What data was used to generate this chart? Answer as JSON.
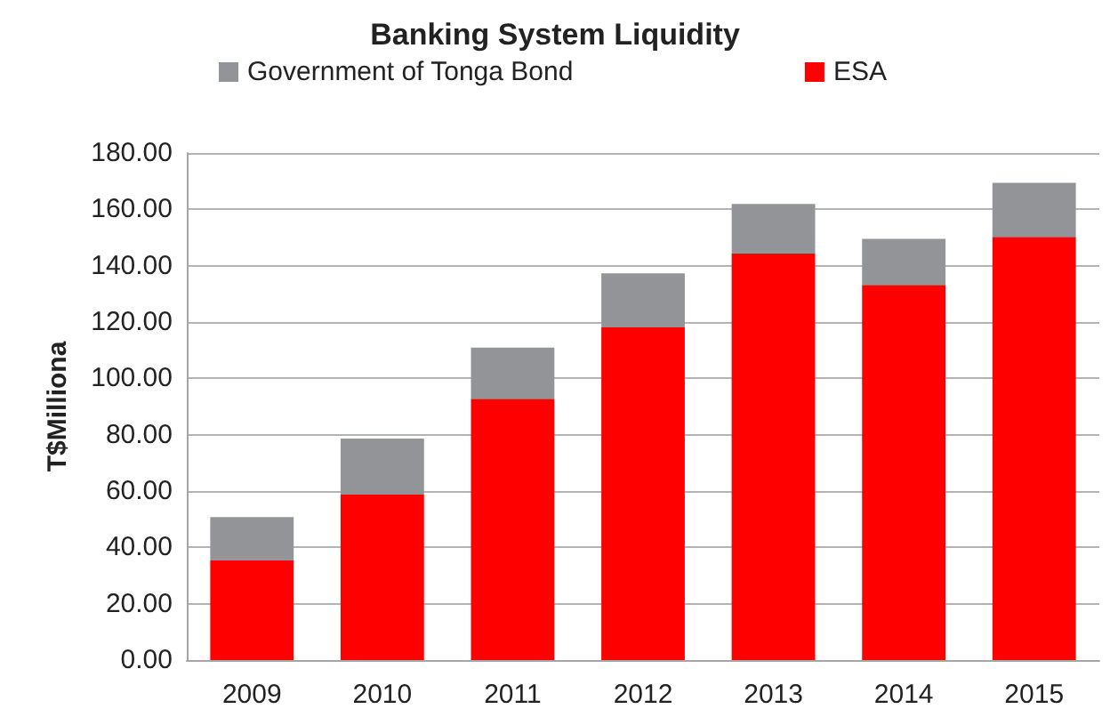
{
  "chart_data": {
    "type": "bar",
    "title": "Banking System Liquidity",
    "ylabel": "T$Milliona",
    "categories": [
      "2009",
      "2010",
      "2011",
      "2012",
      "2013",
      "2014",
      "2015"
    ],
    "stacked": true,
    "series": [
      {
        "name": "ESA",
        "color": "#ff0000",
        "values": [
          35.5,
          58.7,
          92.8,
          118.1,
          144.5,
          133.2,
          150.2
        ]
      },
      {
        "name": "Government of Tonga Bond",
        "color": "#929497",
        "values": [
          15.3,
          19.9,
          18.1,
          19.2,
          17.4,
          16.3,
          19.2
        ]
      }
    ],
    "ylim": [
      0,
      180
    ],
    "yticks": [
      {
        "value": 0,
        "label": "0.00"
      },
      {
        "value": 20,
        "label": "20.00"
      },
      {
        "value": 40,
        "label": "40.00"
      },
      {
        "value": 60,
        "label": "60.00"
      },
      {
        "value": 80,
        "label": "80.00"
      },
      {
        "value": 100,
        "label": "100.00"
      },
      {
        "value": 120,
        "label": "120.00"
      },
      {
        "value": 140,
        "label": "140.00"
      },
      {
        "value": 160,
        "label": "160.00"
      },
      {
        "value": 180,
        "label": "180.00"
      }
    ],
    "grid": "y",
    "legend": "top"
  }
}
